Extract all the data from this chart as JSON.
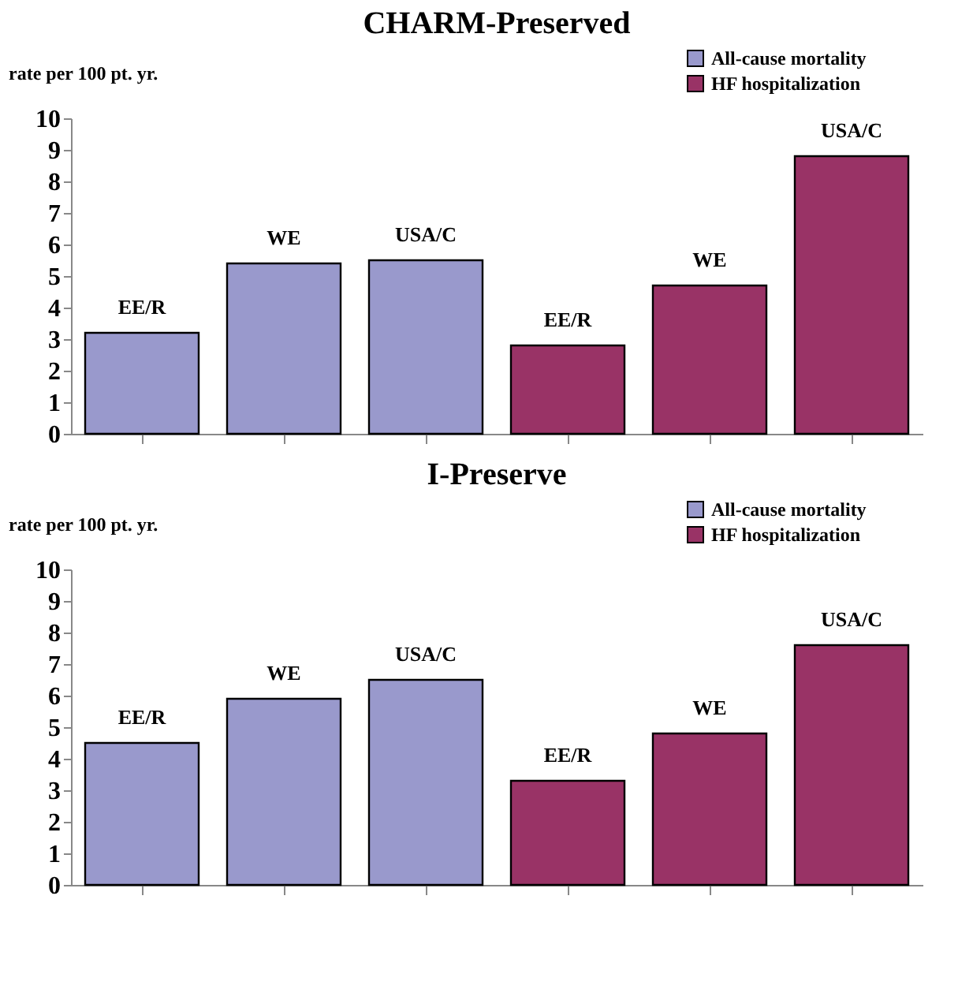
{
  "chart_data": [
    {
      "type": "bar",
      "title": "CHARM-Preserved",
      "ylabel": "rate per 100 pt. yr.",
      "categories": [
        "EE/R",
        "WE",
        "USA/C",
        "EE/R",
        "WE",
        "USA/C"
      ],
      "series": [
        {
          "name": "All-cause mortality",
          "color": "#9999cc",
          "values": [
            3.2,
            5.4,
            5.5,
            null,
            null,
            null
          ]
        },
        {
          "name": "HF hospitalization",
          "color": "#993366",
          "values": [
            null,
            null,
            null,
            2.8,
            4.7,
            8.8
          ]
        }
      ],
      "ylim": [
        0,
        10
      ],
      "yticks": [
        0,
        1,
        2,
        3,
        4,
        5,
        6,
        7,
        8,
        9,
        10
      ],
      "grid": false,
      "legend": "top right",
      "tick_labels": "y"
    },
    {
      "type": "bar",
      "title": "I-Preserve",
      "ylabel": "rate per 100 pt. yr.",
      "categories": [
        "EE/R",
        "WE",
        "USA/C",
        "EE/R",
        "WE",
        "USA/C"
      ],
      "series": [
        {
          "name": "All-cause mortality",
          "color": "#9999cc",
          "values": [
            4.5,
            5.9,
            6.5,
            null,
            null,
            null
          ]
        },
        {
          "name": "HF hospitalization",
          "color": "#993366",
          "values": [
            null,
            null,
            null,
            3.3,
            4.8,
            7.6
          ]
        }
      ],
      "ylim": [
        0,
        10
      ],
      "yticks": [
        0,
        1,
        2,
        3,
        4,
        5,
        6,
        7,
        8,
        9,
        10
      ],
      "grid": false,
      "legend": "top right",
      "tick_labels": "y"
    }
  ]
}
